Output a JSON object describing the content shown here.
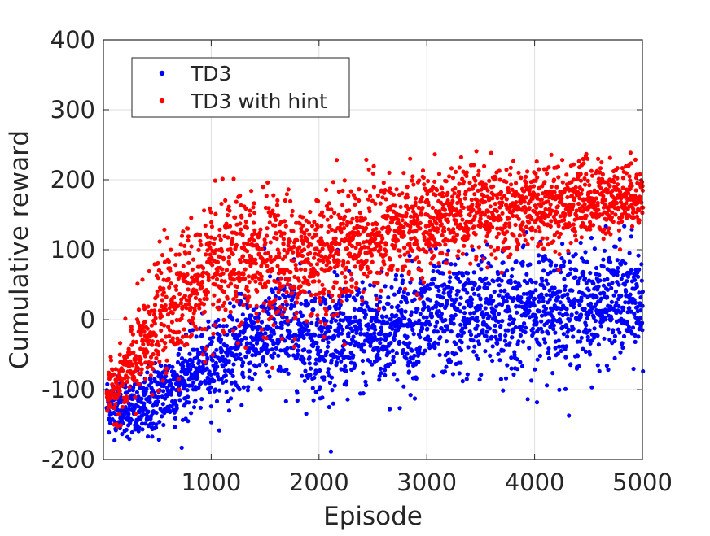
{
  "chart_data": {
    "type": "scatter",
    "title": "",
    "xlabel": "Episode",
    "ylabel": "Cumulative reward",
    "xlim": [
      0,
      5000
    ],
    "ylim": [
      -200,
      400
    ],
    "xticks": [
      1000,
      2000,
      3000,
      4000,
      5000
    ],
    "xtick_labels": [
      "1000",
      "2000",
      "3000",
      "4000",
      "5000"
    ],
    "yticks": [
      -200,
      -100,
      0,
      100,
      200,
      300,
      400
    ],
    "ytick_labels": [
      "-200",
      "-100",
      "0",
      "100",
      "200",
      "300",
      "400"
    ],
    "grid": true,
    "legend_position": "top-left",
    "series": [
      {
        "name": "TD3",
        "color": "#0000ff",
        "x": [
          0,
          100,
          200,
          300,
          400,
          500,
          600,
          700,
          800,
          900,
          1000,
          1250,
          1500,
          1750,
          2000,
          2250,
          2500,
          2750,
          3000,
          3250,
          3500,
          3750,
          4000,
          4250,
          4500,
          4750,
          5000
        ],
        "y": [
          -120,
          -120,
          -125,
          -130,
          -125,
          -110,
          -100,
          -90,
          -80,
          -70,
          -60,
          -40,
          -20,
          -10,
          -30,
          -25,
          -20,
          -10,
          0,
          5,
          10,
          10,
          15,
          20,
          20,
          25,
          25
        ],
        "y_spread": [
          40,
          40,
          40,
          45,
          50,
          55,
          55,
          55,
          55,
          55,
          60,
          65,
          75,
          80,
          80,
          80,
          80,
          80,
          85,
          85,
          85,
          85,
          85,
          85,
          80,
          80,
          80
        ]
      },
      {
        "name": "TD3 with hint",
        "color": "#ff0000",
        "x": [
          0,
          100,
          200,
          300,
          400,
          500,
          600,
          700,
          800,
          900,
          1000,
          1250,
          1500,
          1750,
          2000,
          2250,
          2500,
          2750,
          3000,
          3250,
          3500,
          3750,
          4000,
          4250,
          4500,
          4750,
          5000
        ],
        "y": [
          -110,
          -100,
          -80,
          -60,
          -30,
          0,
          20,
          35,
          50,
          55,
          60,
          80,
          90,
          85,
          90,
          110,
          120,
          130,
          140,
          150,
          155,
          160,
          165,
          165,
          170,
          175,
          180
        ],
        "y_spread": [
          30,
          40,
          55,
          70,
          80,
          85,
          90,
          90,
          90,
          90,
          95,
          95,
          95,
          95,
          95,
          85,
          80,
          75,
          70,
          65,
          65,
          65,
          60,
          55,
          55,
          50,
          45
        ]
      }
    ],
    "points_per_series": 2500
  }
}
